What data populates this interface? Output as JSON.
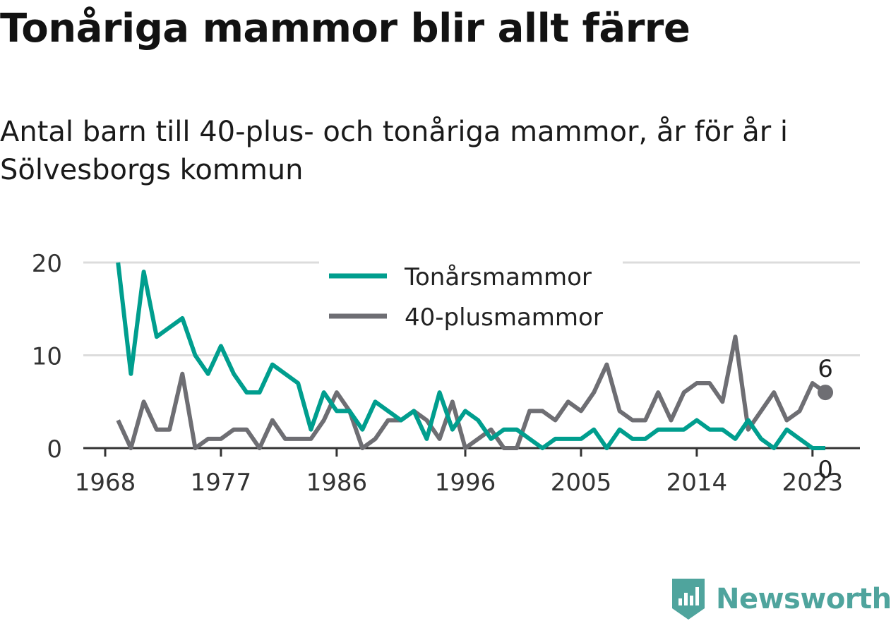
{
  "header": {
    "title": "Tonåriga mammor blir allt färre",
    "subtitle": "Antal barn till 40-plus- och tonåriga mammor, år för år i Sölvesborgs kommun"
  },
  "brand": {
    "name": "Newsworthy",
    "color": "#4fa49d",
    "icon": "bar-chart-badge-icon"
  },
  "chart_data": {
    "type": "line",
    "x_ticks": [
      "1968",
      "1977",
      "1986",
      "1996",
      "2005",
      "2014",
      "2023"
    ],
    "y_ticks": [
      "0",
      "10",
      "20"
    ],
    "ylim": [
      0,
      20
    ],
    "xlim": [
      1966.5,
      2027.5
    ],
    "grid": true,
    "legend_position": "top-center",
    "x": [
      1969,
      1970,
      1971,
      1972,
      1973,
      1974,
      1975,
      1976,
      1977,
      1978,
      1979,
      1980,
      1981,
      1982,
      1983,
      1984,
      1985,
      1986,
      1987,
      1988,
      1989,
      1990,
      1991,
      1992,
      1993,
      1994,
      1995,
      1996,
      1997,
      1998,
      1999,
      2000,
      2001,
      2002,
      2003,
      2004,
      2005,
      2006,
      2007,
      2008,
      2009,
      2010,
      2011,
      2012,
      2013,
      2014,
      2015,
      2016,
      2017,
      2018,
      2019,
      2020,
      2021,
      2022,
      2023,
      2024
    ],
    "series": [
      {
        "name": "Tonårsmammor",
        "color": "#009e8e",
        "values": [
          20,
          8,
          19,
          12,
          13,
          14,
          10,
          8,
          11,
          8,
          6,
          6,
          9,
          8,
          7,
          2,
          6,
          4,
          4,
          2,
          5,
          4,
          3,
          4,
          1,
          6,
          2,
          4,
          3,
          1,
          2,
          2,
          1,
          0,
          1,
          1,
          1,
          2,
          0,
          2,
          1,
          1,
          2,
          2,
          2,
          3,
          2,
          2,
          1,
          3,
          1,
          0,
          2,
          1,
          0,
          0
        ],
        "end_label": "0"
      },
      {
        "name": "40-plusmammor",
        "color": "#6e6e73",
        "values": [
          3,
          0,
          5,
          2,
          2,
          8,
          0,
          1,
          1,
          2,
          2,
          0,
          3,
          1,
          1,
          1,
          3,
          6,
          4,
          0,
          1,
          3,
          3,
          4,
          3,
          1,
          5,
          0,
          1,
          2,
          0,
          0,
          4,
          4,
          3,
          5,
          4,
          6,
          9,
          4,
          3,
          3,
          6,
          3,
          6,
          7,
          7,
          5,
          12,
          2,
          4,
          6,
          3,
          4,
          7,
          6
        ],
        "end_label": "6"
      }
    ]
  }
}
